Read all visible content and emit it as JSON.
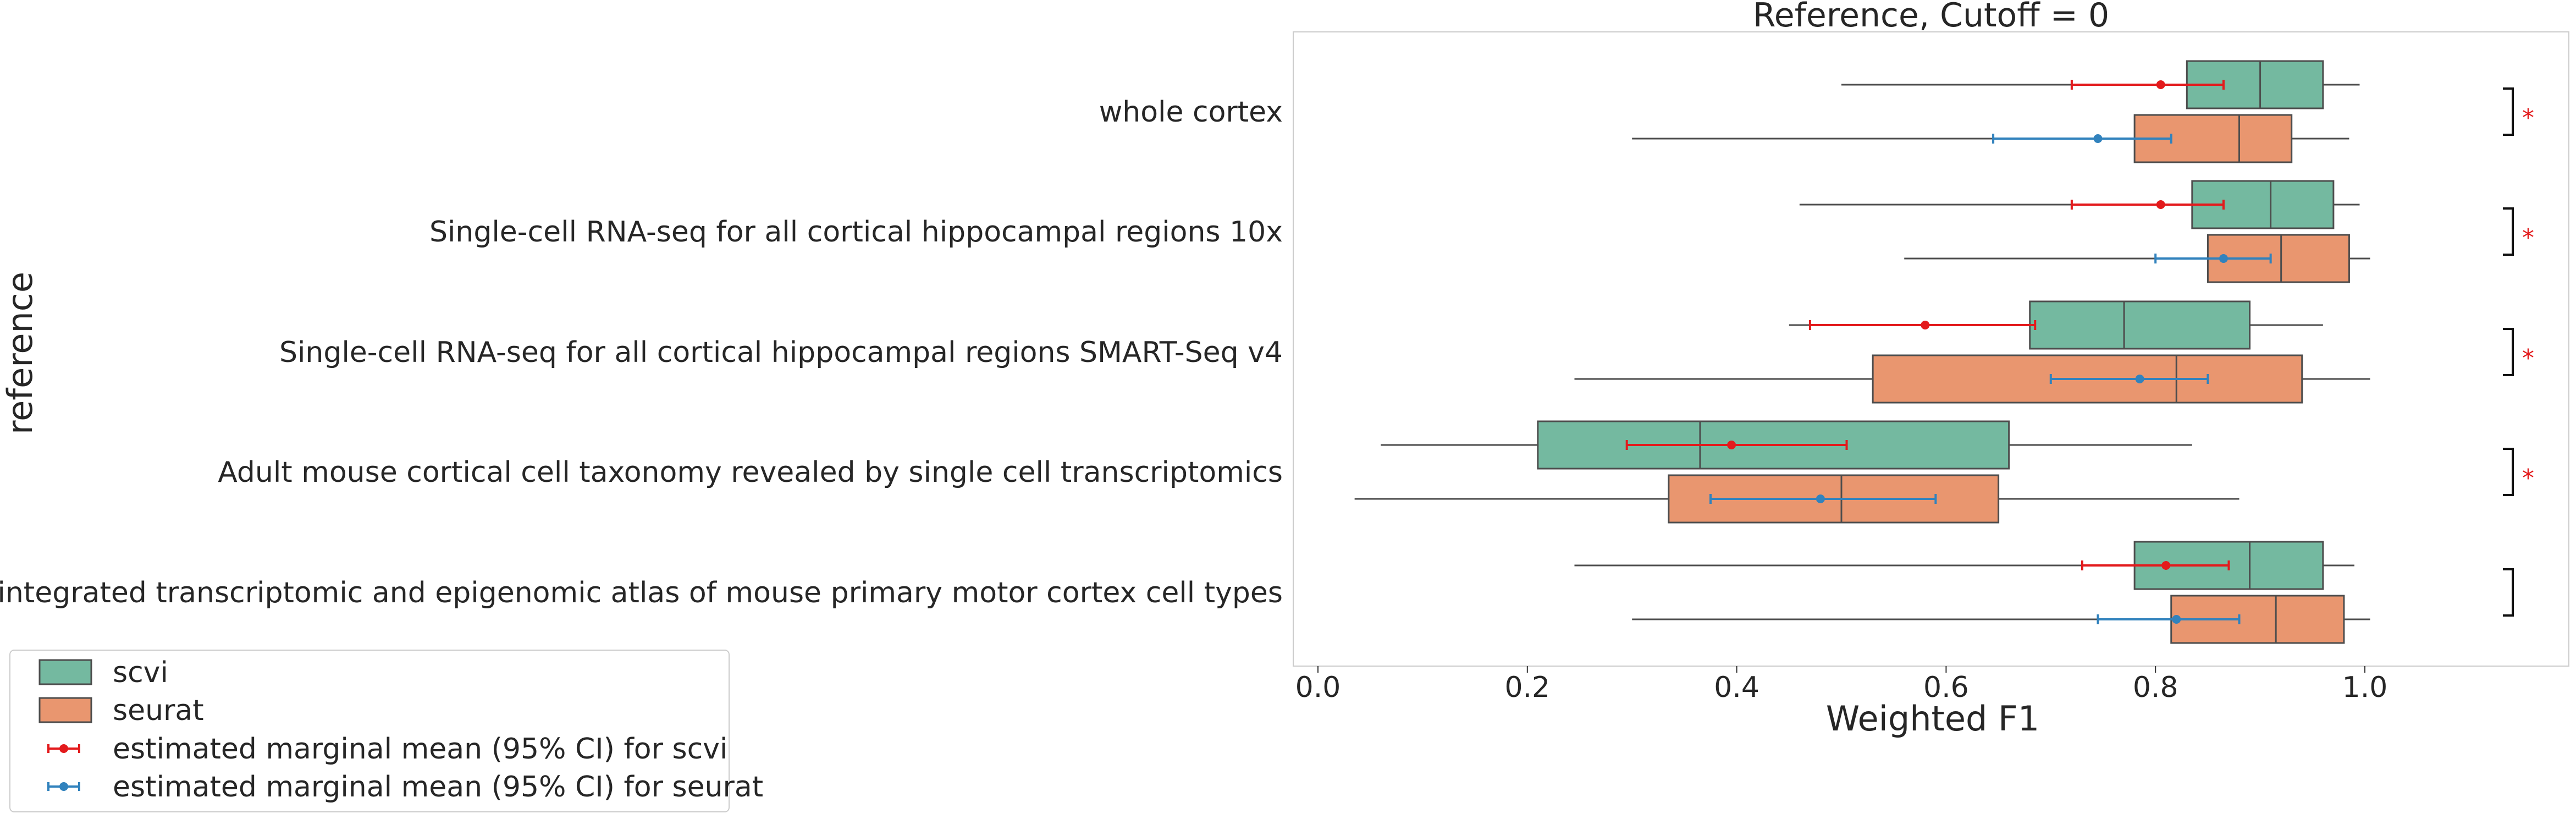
{
  "chart_data": {
    "type": "box",
    "title": "Reference, Cutoff = 0",
    "xlabel": "Weighted F1",
    "ylabel": "reference",
    "xlim": [
      -0.04,
      1.17
    ],
    "xticks": [
      0.0,
      0.2,
      0.4,
      0.6,
      0.8,
      1.0
    ],
    "xtick_labels": [
      "0.0",
      "0.2",
      "0.4",
      "0.6",
      "0.8",
      "1.0"
    ],
    "grid": false,
    "legend_position": "bottom-left",
    "categories": [
      "whole cortex",
      "Single-cell RNA-seq for all cortical  hippocampal regions 10x",
      "Single-cell RNA-seq for all cortical  hippocampal regions SMART-Seq v4",
      "Adult mouse cortical cell taxonomy revealed by single cell transcriptomics",
      "An integrated transcriptomic and epigenomic atlas of mouse primary motor cortex cell types"
    ],
    "series": [
      {
        "name": "scvi",
        "color": "#74b9a0",
        "boxes": [
          {
            "whislo": 0.5,
            "q1": 0.83,
            "med": 0.9,
            "q3": 0.96,
            "whishi": 0.995
          },
          {
            "whislo": 0.46,
            "q1": 0.835,
            "med": 0.91,
            "q3": 0.97,
            "whishi": 0.995
          },
          {
            "whislo": 0.45,
            "q1": 0.68,
            "med": 0.77,
            "q3": 0.89,
            "whishi": 0.96
          },
          {
            "whislo": 0.06,
            "q1": 0.21,
            "med": 0.365,
            "q3": 0.66,
            "whishi": 0.835
          },
          {
            "whislo": 0.245,
            "q1": 0.78,
            "med": 0.89,
            "q3": 0.96,
            "whishi": 0.99
          }
        ]
      },
      {
        "name": "seurat",
        "color": "#e9966f",
        "boxes": [
          {
            "whislo": 0.3,
            "q1": 0.78,
            "med": 0.88,
            "q3": 0.93,
            "whishi": 0.985
          },
          {
            "whislo": 0.56,
            "q1": 0.85,
            "med": 0.92,
            "q3": 0.985,
            "whishi": 1.005
          },
          {
            "whislo": 0.245,
            "q1": 0.53,
            "med": 0.82,
            "q3": 0.94,
            "whishi": 1.005
          },
          {
            "whislo": 0.035,
            "q1": 0.335,
            "med": 0.5,
            "q3": 0.65,
            "whishi": 0.88
          },
          {
            "whislo": 0.3,
            "q1": 0.815,
            "med": 0.915,
            "q3": 0.98,
            "whishi": 1.005
          }
        ]
      }
    ],
    "emmeans": [
      {
        "name": "estimated marginal mean (95% CI) for scvi",
        "color": "#e31a1c",
        "points": [
          {
            "mean": 0.805,
            "lo": 0.72,
            "hi": 0.865
          },
          {
            "mean": 0.805,
            "lo": 0.72,
            "hi": 0.865
          },
          {
            "mean": 0.58,
            "lo": 0.47,
            "hi": 0.685
          },
          {
            "mean": 0.395,
            "lo": 0.295,
            "hi": 0.505
          },
          {
            "mean": 0.81,
            "lo": 0.73,
            "hi": 0.87
          }
        ]
      },
      {
        "name": "estimated marginal mean (95% CI) for seurat",
        "color": "#3182bd",
        "points": [
          {
            "mean": 0.745,
            "lo": 0.645,
            "hi": 0.815
          },
          {
            "mean": 0.865,
            "lo": 0.8,
            "hi": 0.91
          },
          {
            "mean": 0.785,
            "lo": 0.7,
            "hi": 0.85
          },
          {
            "mean": 0.48,
            "lo": 0.375,
            "hi": 0.59
          },
          {
            "mean": 0.82,
            "lo": 0.745,
            "hi": 0.88
          }
        ]
      }
    ],
    "significance": [
      "*",
      "*",
      "*",
      "*",
      ""
    ],
    "significance_color": "#e31a1c",
    "legend_entries": [
      "scvi",
      "seurat",
      "estimated marginal mean (95% CI) for scvi",
      "estimated marginal mean (95% CI) for seurat"
    ]
  }
}
